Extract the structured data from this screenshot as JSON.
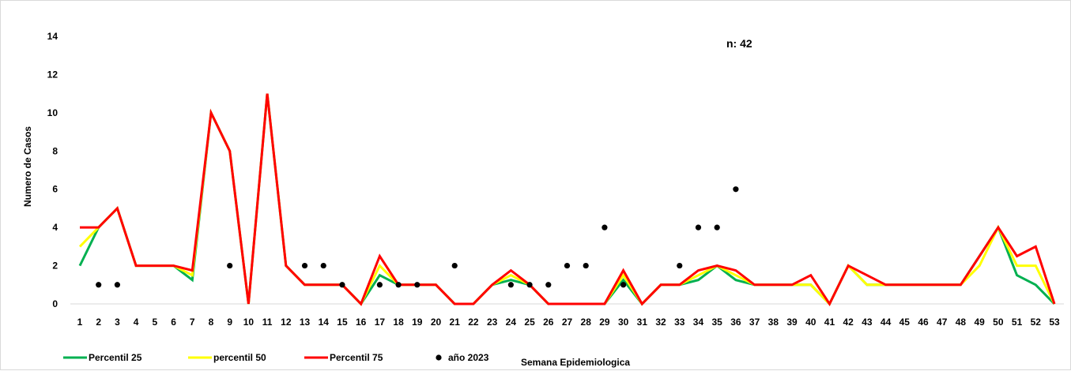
{
  "chart_data": {
    "type": "line",
    "title": "",
    "xlabel": "Semana Epidemiologica",
    "ylabel": "Numero de Casos",
    "annotation": "n: 42",
    "ylim": [
      0,
      14
    ],
    "yticks": [
      0,
      2,
      4,
      6,
      8,
      10,
      12,
      14
    ],
    "grid": false,
    "legend_position": "bottom-left",
    "categories": [
      "1",
      "2",
      "3",
      "4",
      "5",
      "6",
      "7",
      "8",
      "9",
      "10",
      "11",
      "12",
      "13",
      "14",
      "15",
      "16",
      "17",
      "18",
      "19",
      "20",
      "21",
      "22",
      "23",
      "24",
      "25",
      "26",
      "27",
      "28",
      "29",
      "30",
      "31",
      "32",
      "33",
      "34",
      "35",
      "36",
      "37",
      "38",
      "39",
      "40",
      "41",
      "42",
      "43",
      "44",
      "45",
      "46",
      "47",
      "48",
      "49",
      "50",
      "51",
      "52",
      "53"
    ],
    "series": [
      {
        "name": "Percentil 25",
        "kind": "line",
        "color": "#00b050",
        "values": [
          2,
          4,
          5,
          2,
          2,
          2,
          1.25,
          10,
          8,
          0,
          11,
          2,
          1,
          1,
          1,
          0,
          1.5,
          1,
          1,
          1,
          0,
          0,
          1,
          1.25,
          1,
          0,
          0,
          0,
          0,
          1.25,
          0,
          1,
          1,
          1.25,
          2,
          1.25,
          1,
          1,
          1,
          1,
          0,
          2,
          1,
          1,
          1,
          1,
          1,
          1,
          2.5,
          4,
          1.5,
          1,
          0
        ]
      },
      {
        "name": "percentil 50",
        "kind": "line",
        "color": "#ffff00",
        "values": [
          3,
          4,
          5,
          2,
          2,
          2,
          1.5,
          10,
          8,
          0,
          11,
          2,
          1,
          1,
          1,
          0,
          2,
          1,
          1,
          1,
          0,
          0,
          1,
          1.5,
          1,
          0,
          0,
          0,
          0,
          1.5,
          0,
          1,
          1,
          1.5,
          2,
          1.5,
          1,
          1,
          1,
          1,
          0,
          2,
          1,
          1,
          1,
          1,
          1,
          1,
          2,
          4,
          2,
          2,
          0
        ]
      },
      {
        "name": "Percentil 75",
        "kind": "line",
        "color": "#ff0000",
        "values": [
          4,
          4,
          5,
          2,
          2,
          2,
          1.75,
          10,
          8,
          0,
          11,
          2,
          1,
          1,
          1,
          0,
          2.5,
          1,
          1,
          1,
          0,
          0,
          1,
          1.75,
          1,
          0,
          0,
          0,
          0,
          1.75,
          0,
          1,
          1,
          1.75,
          2,
          1.75,
          1,
          1,
          1,
          1.5,
          0,
          2,
          1.5,
          1,
          1,
          1,
          1,
          1,
          2.5,
          4,
          2.5,
          3,
          0
        ]
      },
      {
        "name": "año 2023",
        "kind": "scatter",
        "color": "#000000",
        "points": [
          [
            2,
            1
          ],
          [
            3,
            1
          ],
          [
            9,
            2
          ],
          [
            13,
            2
          ],
          [
            14,
            2
          ],
          [
            15,
            1
          ],
          [
            17,
            1
          ],
          [
            18,
            1
          ],
          [
            19,
            1
          ],
          [
            21,
            2
          ],
          [
            24,
            1
          ],
          [
            25,
            1
          ],
          [
            26,
            1
          ],
          [
            27,
            2
          ],
          [
            28,
            2
          ],
          [
            29,
            4
          ],
          [
            30,
            1
          ],
          [
            33,
            2
          ],
          [
            34,
            4
          ],
          [
            35,
            4
          ],
          [
            36,
            6
          ]
        ]
      }
    ]
  }
}
